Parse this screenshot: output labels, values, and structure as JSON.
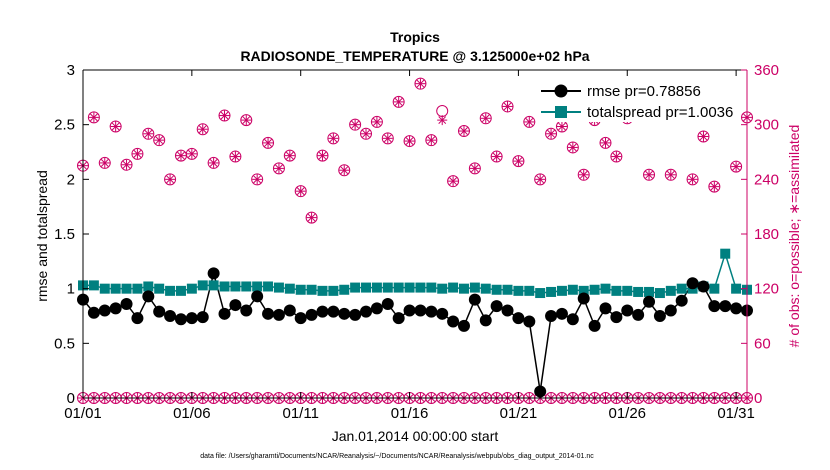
{
  "chart_data": {
    "type": "line",
    "title": "Tropics",
    "subtitle": "RADIOSONDE_TEMPERATURE @ 3.125000e+02 hPa",
    "xlabel": "Jan.01,2014 00:00:00 start",
    "ylabel": "rmse and totalspread",
    "ylabel_right": "# of obs: o=possible; ∗=assimilated",
    "footnote": "data file: /Users/gharamti/Documents/NCAR/Reanalysis/~/Documents/NCAR/Reanalysis/webpub/obs_diag_output_2014-01.nc",
    "xlim": [
      1,
      31.5
    ],
    "x_ticks": [
      1,
      6,
      11,
      16,
      21,
      26,
      31
    ],
    "x_tick_labels": [
      "01/01",
      "01/06",
      "01/11",
      "01/16",
      "01/21",
      "01/26",
      "01/31"
    ],
    "ylim": [
      0,
      3
    ],
    "y_ticks": [
      0,
      0.5,
      1,
      1.5,
      2,
      2.5,
      3
    ],
    "y_tick_labels": [
      "0",
      "0.5",
      "1",
      "1.5",
      "2",
      "2.5",
      "3"
    ],
    "ylim_right": [
      0,
      360
    ],
    "y_ticks_right": [
      0,
      60,
      120,
      180,
      240,
      300,
      360
    ],
    "y_tick_labels_right": [
      "0",
      "60",
      "120",
      "180",
      "240",
      "300",
      "360"
    ],
    "legend_position": "top-right",
    "colors": {
      "rmse": "#000000",
      "totalspread": "#008080",
      "obs": "#cc0066"
    },
    "x": [
      1,
      1.5,
      2,
      2.5,
      3,
      3.5,
      4,
      4.5,
      5,
      5.5,
      6,
      6.5,
      7,
      7.5,
      8,
      8.5,
      9,
      9.5,
      10,
      10.5,
      11,
      11.5,
      12,
      12.5,
      13,
      13.5,
      14,
      14.5,
      15,
      15.5,
      16,
      16.5,
      17,
      17.5,
      18,
      18.5,
      19,
      19.5,
      20,
      20.5,
      21,
      21.5,
      22,
      22.5,
      23,
      23.5,
      24,
      24.5,
      25,
      25.5,
      26,
      26.5,
      27,
      27.5,
      28,
      28.5,
      29,
      29.5,
      30,
      30.5,
      31,
      31.5
    ],
    "series": [
      {
        "name": "rmse",
        "legend": "rmse pr=0.78856",
        "values": [
          0.9,
          0.78,
          0.8,
          0.82,
          0.86,
          0.73,
          0.93,
          0.79,
          0.75,
          0.72,
          0.73,
          0.74,
          1.14,
          0.77,
          0.85,
          0.8,
          0.93,
          0.77,
          0.76,
          0.8,
          0.73,
          0.76,
          0.79,
          0.79,
          0.77,
          0.76,
          0.79,
          0.82,
          0.86,
          0.73,
          0.8,
          0.8,
          0.79,
          0.77,
          0.7,
          0.66,
          0.9,
          0.71,
          0.84,
          0.8,
          0.73,
          0.7,
          0.06,
          0.75,
          0.77,
          0.72,
          0.91,
          0.66,
          0.82,
          0.74,
          0.8,
          0.76,
          0.88,
          0.75,
          0.8,
          0.89,
          1.05,
          1.02,
          0.84,
          0.84,
          0.82,
          0.8
        ]
      },
      {
        "name": "totalspread",
        "legend": "totalspread pr=1.0036",
        "values": [
          1.03,
          1.03,
          1.0,
          1.0,
          1.0,
          1.0,
          1.02,
          1.0,
          0.98,
          0.98,
          1.0,
          1.03,
          1.03,
          1.02,
          1.02,
          1.02,
          1.02,
          1.02,
          1.01,
          1.0,
          0.99,
          0.99,
          0.98,
          0.98,
          0.99,
          1.01,
          1.01,
          1.01,
          1.01,
          1.01,
          1.01,
          1.01,
          1.01,
          1.0,
          1.01,
          1.0,
          1.01,
          1.0,
          0.99,
          0.99,
          0.98,
          0.98,
          0.96,
          0.97,
          0.98,
          0.99,
          0.98,
          0.99,
          1.0,
          0.98,
          0.98,
          0.97,
          0.97,
          0.96,
          0.98,
          1.0,
          1.0,
          1.02,
          1.0,
          1.32,
          1.0,
          0.99
        ]
      },
      {
        "name": "obs possible",
        "axis": "right",
        "values": [
          255,
          308,
          258,
          298,
          256,
          268,
          290,
          283,
          240,
          266,
          268,
          295,
          258,
          310,
          265,
          305,
          240,
          280,
          252,
          266,
          227,
          198,
          266,
          285,
          250,
          300,
          290,
          303,
          285,
          325,
          282,
          345,
          283,
          315,
          238,
          293,
          252,
          307,
          265,
          320,
          260,
          303,
          240,
          290,
          298,
          275,
          245,
          305,
          280,
          265,
          307,
          312,
          245,
          330,
          245,
          317,
          240,
          287,
          232,
          322,
          254,
          308
        ]
      },
      {
        "name": "obs assimilated",
        "axis": "right",
        "values": [
          255,
          308,
          258,
          298,
          256,
          268,
          290,
          283,
          240,
          266,
          268,
          295,
          258,
          310,
          265,
          305,
          240,
          280,
          252,
          266,
          227,
          198,
          266,
          285,
          250,
          300,
          290,
          303,
          285,
          325,
          282,
          345,
          283,
          305,
          238,
          293,
          252,
          307,
          265,
          320,
          260,
          303,
          240,
          290,
          298,
          275,
          245,
          305,
          280,
          265,
          307,
          312,
          245,
          330,
          245,
          317,
          240,
          287,
          232,
          322,
          254,
          308
        ]
      },
      {
        "name": "obs possible (level 0)",
        "axis": "right",
        "values": [
          0,
          0,
          0,
          0,
          0,
          0,
          0,
          0,
          0,
          0,
          0,
          0,
          0,
          0,
          0,
          0,
          0,
          0,
          0,
          0,
          0,
          0,
          0,
          0,
          0,
          0,
          0,
          0,
          0,
          0,
          0,
          0,
          0,
          0,
          0,
          0,
          0,
          0,
          0,
          0,
          0,
          0,
          0,
          0,
          0,
          0,
          0,
          0,
          0,
          0,
          0,
          0,
          0,
          0,
          0,
          0,
          0,
          0,
          0,
          0,
          0,
          0
        ]
      }
    ]
  }
}
